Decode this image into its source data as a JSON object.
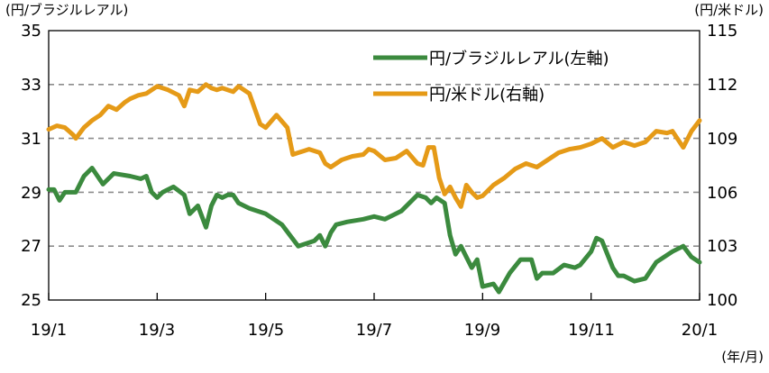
{
  "chart_data": {
    "type": "line",
    "title": "",
    "left_axis": {
      "unit_label": "(円/ブラジルレアル)",
      "range": [
        25,
        35
      ],
      "ticks": [
        "35",
        "33",
        "31",
        "29",
        "27",
        "25"
      ]
    },
    "right_axis": {
      "unit_label": "(円/米ドル)",
      "range": [
        100,
        115
      ],
      "ticks": [
        "115",
        "112",
        "109",
        "106",
        "103",
        "100"
      ]
    },
    "x_axis": {
      "tick_labels": [
        "19/1",
        "19/3",
        "19/5",
        "19/7",
        "19/9",
        "19/11",
        "20/1"
      ],
      "unit_label": "(年/月)",
      "range_months": [
        0,
        12
      ]
    },
    "gridlines": "dashed horizontal",
    "legend_position": "top-right",
    "series": [
      {
        "name": "円/ブラジルレアル(左軸)",
        "legend_label": "円/ブラジルレアル(左軸)",
        "axis": "left",
        "color": "#3b8a3e",
        "x": [
          0,
          0.1,
          0.2,
          0.3,
          0.4,
          0.5,
          0.65,
          0.8,
          1.0,
          1.2,
          1.5,
          1.7,
          1.8,
          1.9,
          2.0,
          2.1,
          2.3,
          2.5,
          2.6,
          2.75,
          2.9,
          3.0,
          3.1,
          3.2,
          3.3,
          3.4,
          3.5,
          3.7,
          4.0,
          4.3,
          4.6,
          4.9,
          5.0,
          5.1,
          5.2,
          5.3,
          5.5,
          5.8,
          6.0,
          6.2,
          6.5,
          6.8,
          6.95,
          7.05,
          7.15,
          7.3,
          7.4,
          7.5,
          7.6,
          7.7,
          7.8,
          7.9,
          8.0,
          8.2,
          8.3,
          8.5,
          8.7,
          8.9,
          9.0,
          9.1,
          9.3,
          9.5,
          9.7,
          9.8,
          10.0,
          10.1,
          10.2,
          10.4,
          10.5,
          10.6,
          10.8,
          11.0,
          11.2,
          11.5,
          11.7,
          11.85,
          12.0
        ],
        "values": [
          29.1,
          29.1,
          28.7,
          29.0,
          29.0,
          29.0,
          29.6,
          29.9,
          29.3,
          29.7,
          29.6,
          29.5,
          29.6,
          29.0,
          28.8,
          29.0,
          29.2,
          28.9,
          28.2,
          28.5,
          27.7,
          28.5,
          28.9,
          28.8,
          28.9,
          28.9,
          28.6,
          28.4,
          28.2,
          27.8,
          27.0,
          27.2,
          27.4,
          27.0,
          27.5,
          27.8,
          27.9,
          28.0,
          28.1,
          28.0,
          28.3,
          28.9,
          28.8,
          28.6,
          28.8,
          28.6,
          27.4,
          26.7,
          27.0,
          26.6,
          26.2,
          26.5,
          25.5,
          25.6,
          25.3,
          26.0,
          26.5,
          26.5,
          25.8,
          26.0,
          26.0,
          26.3,
          26.2,
          26.3,
          26.8,
          27.3,
          27.2,
          26.2,
          25.9,
          25.9,
          25.7,
          25.8,
          26.4,
          26.8,
          27.0,
          26.6,
          26.4
        ]
      },
      {
        "name": "円/米ドル(右軸)",
        "legend_label": "円/米ドル(右軸)",
        "axis": "right",
        "color": "#e59a17",
        "x": [
          0,
          0.15,
          0.3,
          0.45,
          0.5,
          0.65,
          0.8,
          0.95,
          1.1,
          1.25,
          1.4,
          1.5,
          1.65,
          1.8,
          2.0,
          2.2,
          2.4,
          2.5,
          2.6,
          2.75,
          2.9,
          3.0,
          3.1,
          3.2,
          3.4,
          3.5,
          3.7,
          3.9,
          4.0,
          4.2,
          4.4,
          4.5,
          4.6,
          4.7,
          4.8,
          5.0,
          5.1,
          5.2,
          5.4,
          5.6,
          5.8,
          5.9,
          6.0,
          6.2,
          6.4,
          6.6,
          6.8,
          6.9,
          7.0,
          7.1,
          7.2,
          7.3,
          7.4,
          7.5,
          7.6,
          7.7,
          7.8,
          7.9,
          8.0,
          8.2,
          8.4,
          8.6,
          8.8,
          9.0,
          9.2,
          9.4,
          9.6,
          9.8,
          10.0,
          10.2,
          10.4,
          10.6,
          10.8,
          11.0,
          11.2,
          11.4,
          11.5,
          11.7,
          11.85,
          12.0
        ],
        "values": [
          109.5,
          109.7,
          109.6,
          109.2,
          109.0,
          109.6,
          110.0,
          110.3,
          110.8,
          110.6,
          111.0,
          111.2,
          111.4,
          111.5,
          111.9,
          111.7,
          111.4,
          110.8,
          111.7,
          111.6,
          112.0,
          111.8,
          111.7,
          111.8,
          111.6,
          111.9,
          111.5,
          109.8,
          109.6,
          110.3,
          109.6,
          108.1,
          108.2,
          108.3,
          108.4,
          108.2,
          107.6,
          107.4,
          107.8,
          108.0,
          108.1,
          108.4,
          108.3,
          107.8,
          107.9,
          108.3,
          107.6,
          107.5,
          108.5,
          108.5,
          106.8,
          105.9,
          106.3,
          105.7,
          105.2,
          106.4,
          106.0,
          105.7,
          105.8,
          106.4,
          106.8,
          107.3,
          107.6,
          107.4,
          107.8,
          108.2,
          108.4,
          108.5,
          108.7,
          109.0,
          108.5,
          108.8,
          108.6,
          108.8,
          109.4,
          109.3,
          109.4,
          108.5,
          109.4,
          110.0
        ]
      }
    ]
  }
}
